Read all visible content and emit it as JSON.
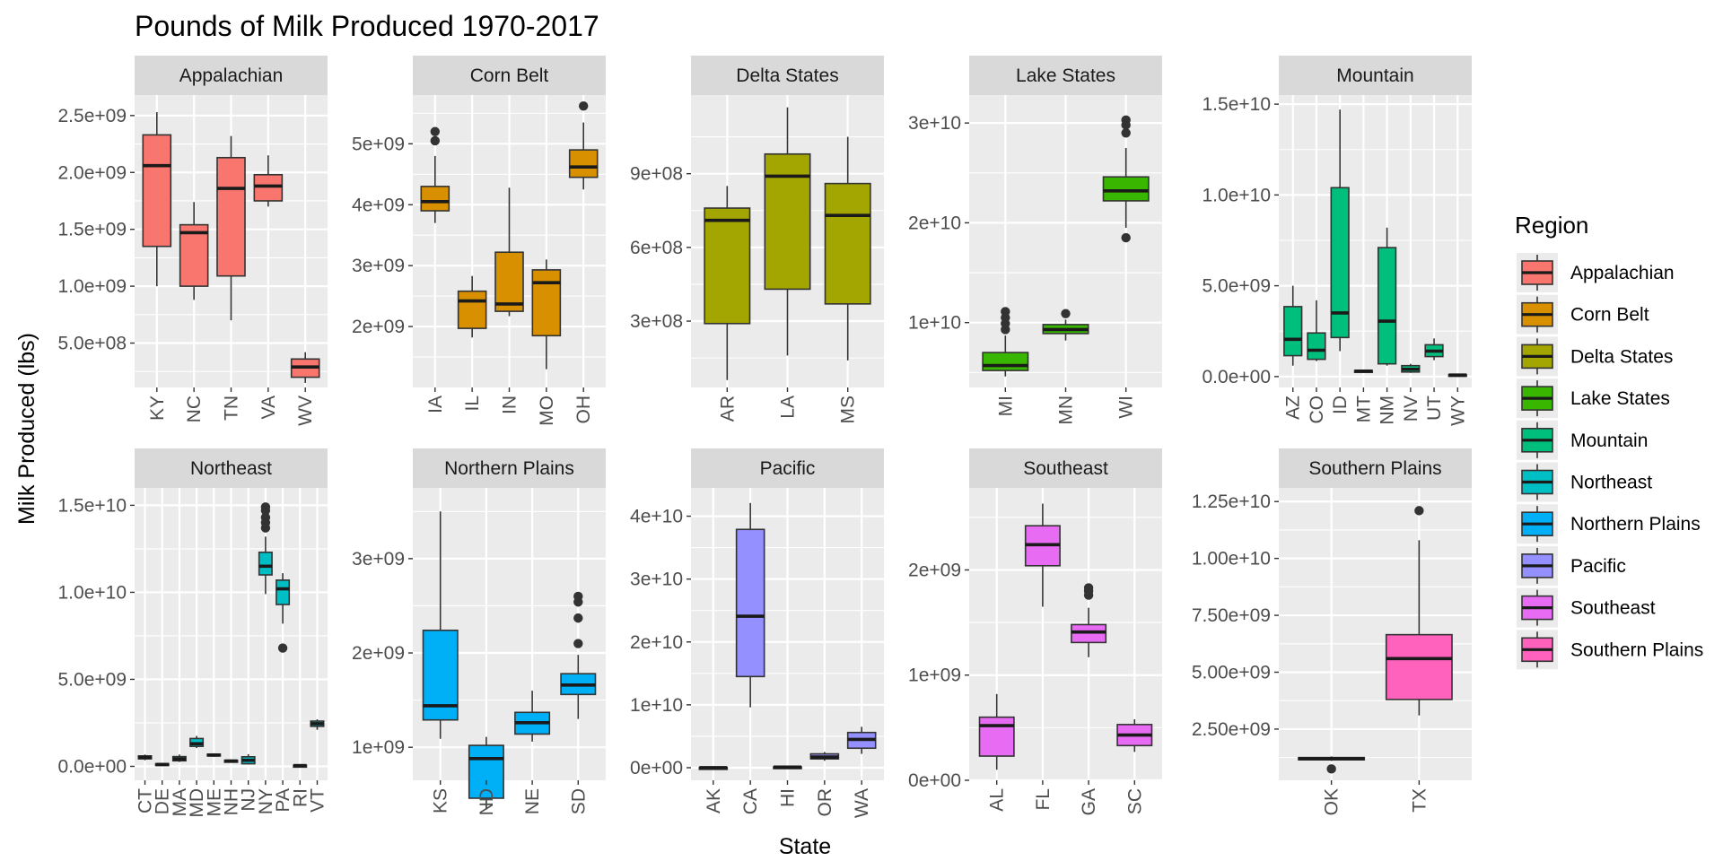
{
  "chart_data": {
    "type": "boxplot",
    "title": "Pounds of Milk Produced 1970-2017",
    "xlabel": "State",
    "ylabel": "Milk Produced (lbs)",
    "legend": {
      "title": "Region",
      "position": "right"
    },
    "colors": {
      "Appalachian": "#F8766D",
      "Corn Belt": "#D89000",
      "Delta States": "#A3A500",
      "Lake States": "#39B600",
      "Mountain": "#00BF7D",
      "Northeast": "#00BFC4",
      "Northern Plains": "#00B0F6",
      "Pacific": "#9590FF",
      "Southeast": "#E76BF3",
      "Southern Plains": "#FF62BC"
    },
    "panels": [
      {
        "region": "Appalachian",
        "ylim": [
          110000000,
          2680000000
        ],
        "yticks": [
          500000000,
          1000000000,
          1500000000,
          2000000000,
          2500000000
        ],
        "ytick_labels": [
          "5.0e+08",
          "1.0e+09",
          "1.5e+09",
          "2.0e+09",
          "2.5e+09"
        ],
        "boxes": [
          {
            "state": "KY",
            "min": 1000000000,
            "q1": 1350000000,
            "median": 2060000000,
            "q3": 2330000000,
            "max": 2530000000,
            "outliers": []
          },
          {
            "state": "NC",
            "min": 880000000,
            "q1": 1000000000,
            "median": 1470000000,
            "q3": 1540000000,
            "max": 1740000000,
            "outliers": []
          },
          {
            "state": "TN",
            "min": 700000000,
            "q1": 1090000000,
            "median": 1860000000,
            "q3": 2130000000,
            "max": 2320000000,
            "outliers": []
          },
          {
            "state": "VA",
            "min": 1700000000,
            "q1": 1750000000,
            "median": 1880000000,
            "q3": 1980000000,
            "max": 2150000000,
            "outliers": []
          },
          {
            "state": "WV",
            "min": 150000000,
            "q1": 200000000,
            "median": 290000000,
            "q3": 360000000,
            "max": 420000000,
            "outliers": []
          }
        ]
      },
      {
        "region": "Corn Belt",
        "ylim": [
          1000000000,
          5800000000
        ],
        "yticks": [
          2000000000,
          3000000000,
          4000000000,
          5000000000
        ],
        "ytick_labels": [
          "2e+09",
          "3e+09",
          "4e+09",
          "5e+09"
        ],
        "boxes": [
          {
            "state": "IA",
            "min": 3700000000,
            "q1": 3900000000,
            "median": 4050000000,
            "q3": 4300000000,
            "max": 4800000000,
            "outliers": [
              5050000000,
              5200000000
            ]
          },
          {
            "state": "IL",
            "min": 1820000000,
            "q1": 1970000000,
            "median": 2420000000,
            "q3": 2580000000,
            "max": 2830000000,
            "outliers": []
          },
          {
            "state": "IN",
            "min": 2170000000,
            "q1": 2250000000,
            "median": 2370000000,
            "q3": 3220000000,
            "max": 4280000000,
            "outliers": []
          },
          {
            "state": "MO",
            "min": 1300000000,
            "q1": 1850000000,
            "median": 2720000000,
            "q3": 2930000000,
            "max": 3100000000,
            "outliers": []
          },
          {
            "state": "OH",
            "min": 4250000000,
            "q1": 4450000000,
            "median": 4620000000,
            "q3": 4900000000,
            "max": 5350000000,
            "outliers": [
              5620000000
            ]
          }
        ]
      },
      {
        "region": "Delta States",
        "ylim": [
          30000000,
          1220000000
        ],
        "yticks": [
          300000000,
          600000000,
          900000000
        ],
        "ytick_labels": [
          "3e+08",
          "6e+08",
          "9e+08"
        ],
        "boxes": [
          {
            "state": "AR",
            "min": 60000000,
            "q1": 290000000,
            "median": 710000000,
            "q3": 760000000,
            "max": 850000000,
            "outliers": []
          },
          {
            "state": "LA",
            "min": 160000000,
            "q1": 430000000,
            "median": 890000000,
            "q3": 980000000,
            "max": 1170000000,
            "outliers": []
          },
          {
            "state": "MS",
            "min": 140000000,
            "q1": 370000000,
            "median": 730000000,
            "q3": 860000000,
            "max": 1050000000,
            "outliers": []
          }
        ]
      },
      {
        "region": "Lake States",
        "ylim": [
          3500000000,
          32800000000
        ],
        "yticks": [
          10000000000,
          20000000000,
          30000000000
        ],
        "ytick_labels": [
          "1e+10",
          "2e+10",
          "3e+10"
        ],
        "boxes": [
          {
            "state": "MI",
            "min": 4600000000,
            "q1": 5200000000,
            "median": 5700000000,
            "q3": 7000000000,
            "max": 8700000000,
            "outliers": [
              9300000000,
              9900000000,
              10500000000,
              11100000000
            ]
          },
          {
            "state": "MN",
            "min": 8200000000,
            "q1": 8900000000,
            "median": 9300000000,
            "q3": 9800000000,
            "max": 10300000000,
            "outliers": [
              10900000000
            ]
          },
          {
            "state": "WI",
            "min": 19500000000,
            "q1": 22200000000,
            "median": 23200000000,
            "q3": 24600000000,
            "max": 27500000000,
            "outliers": [
              18500000000,
              29000000000,
              29800000000,
              30300000000
            ]
          }
        ]
      },
      {
        "region": "Mountain",
        "ylim": [
          -600000000,
          15500000000
        ],
        "yticks": [
          0,
          5000000000,
          10000000000,
          15000000000
        ],
        "ytick_labels": [
          "0.0e+00",
          "5.0e+09",
          "1.0e+10",
          "1.5e+10"
        ],
        "boxes": [
          {
            "state": "AZ",
            "min": 600000000,
            "q1": 1150000000,
            "median": 2050000000,
            "q3": 3850000000,
            "max": 5000000000,
            "outliers": []
          },
          {
            "state": "CO",
            "min": 850000000,
            "q1": 950000000,
            "median": 1450000000,
            "q3": 2400000000,
            "max": 4200000000,
            "outliers": []
          },
          {
            "state": "ID",
            "min": 1400000000,
            "q1": 2150000000,
            "median": 3500000000,
            "q3": 10400000000,
            "max": 14700000000,
            "outliers": []
          },
          {
            "state": "MT",
            "min": 250000000,
            "q1": 270000000,
            "median": 300000000,
            "q3": 330000000,
            "max": 360000000,
            "outliers": []
          },
          {
            "state": "NM",
            "min": 600000000,
            "q1": 700000000,
            "median": 3050000000,
            "q3": 7100000000,
            "max": 8200000000,
            "outliers": []
          },
          {
            "state": "NV",
            "min": 200000000,
            "q1": 250000000,
            "median": 400000000,
            "q3": 600000000,
            "max": 700000000,
            "outliers": []
          },
          {
            "state": "UT",
            "min": 900000000,
            "q1": 1100000000,
            "median": 1400000000,
            "q3": 1750000000,
            "max": 2100000000,
            "outliers": []
          },
          {
            "state": "WY",
            "min": 50000000,
            "q1": 60000000,
            "median": 80000000,
            "q3": 110000000,
            "max": 140000000,
            "outliers": []
          }
        ]
      },
      {
        "region": "Northeast",
        "ylim": [
          -800000000,
          16000000000
        ],
        "yticks": [
          0,
          5000000000,
          10000000000,
          15000000000
        ],
        "ytick_labels": [
          "0.0e+00",
          "5.0e+09",
          "1.0e+10",
          "1.5e+10"
        ],
        "boxes": [
          {
            "state": "CT",
            "min": 350000000,
            "q1": 430000000,
            "median": 520000000,
            "q3": 600000000,
            "max": 680000000,
            "outliers": []
          },
          {
            "state": "DE",
            "min": 60000000,
            "q1": 80000000,
            "median": 110000000,
            "q3": 150000000,
            "max": 180000000,
            "outliers": []
          },
          {
            "state": "MA",
            "min": 250000000,
            "q1": 320000000,
            "median": 420000000,
            "q3": 560000000,
            "max": 680000000,
            "outliers": []
          },
          {
            "state": "MD",
            "min": 1050000000,
            "q1": 1150000000,
            "median": 1300000000,
            "q3": 1600000000,
            "max": 1750000000,
            "outliers": []
          },
          {
            "state": "ME",
            "min": 550000000,
            "q1": 600000000,
            "median": 650000000,
            "q3": 700000000,
            "max": 750000000,
            "outliers": []
          },
          {
            "state": "NH",
            "min": 270000000,
            "q1": 290000000,
            "median": 310000000,
            "q3": 340000000,
            "max": 360000000,
            "outliers": []
          },
          {
            "state": "NJ",
            "min": 100000000,
            "q1": 150000000,
            "median": 350000000,
            "q3": 550000000,
            "max": 700000000,
            "outliers": []
          },
          {
            "state": "NY",
            "min": 9900000000,
            "q1": 11000000000,
            "median": 11500000000,
            "q3": 12300000000,
            "max": 13200000000,
            "outliers": [
              13700000000,
              14000000000,
              14300000000,
              14700000000,
              14900000000
            ]
          },
          {
            "state": "PA",
            "min": 8200000000,
            "q1": 9300000000,
            "median": 10200000000,
            "q3": 10700000000,
            "max": 11100000000,
            "outliers": [
              6800000000
            ]
          },
          {
            "state": "RI",
            "min": 25000000,
            "q1": 35000000,
            "median": 45000000,
            "q3": 60000000,
            "max": 80000000,
            "outliers": []
          },
          {
            "state": "VT",
            "min": 2100000000,
            "q1": 2300000000,
            "median": 2450000000,
            "q3": 2600000000,
            "max": 2700000000,
            "outliers": []
          }
        ]
      },
      {
        "region": "Northern Plains",
        "ylim": [
          650000000,
          3750000000
        ],
        "yticks": [
          1000000000,
          2000000000,
          3000000000
        ],
        "ytick_labels": [
          "1e+09",
          "2e+09",
          "3e+09"
        ],
        "boxes": [
          {
            "state": "KS",
            "min": 1090000000,
            "q1": 1290000000,
            "median": 1440000000,
            "q3": 2240000000,
            "max": 3500000000,
            "outliers": []
          },
          {
            "state": "ND",
            "min": 340000000,
            "q1": 460000000,
            "median": 880000000,
            "q3": 1020000000,
            "max": 1110000000,
            "outliers": []
          },
          {
            "state": "NE",
            "min": 1060000000,
            "q1": 1140000000,
            "median": 1260000000,
            "q3": 1370000000,
            "max": 1600000000,
            "outliers": []
          },
          {
            "state": "SD",
            "min": 1300000000,
            "q1": 1560000000,
            "median": 1660000000,
            "q3": 1780000000,
            "max": 1980000000,
            "outliers": [
              2100000000,
              2370000000,
              2540000000,
              2600000000
            ]
          }
        ]
      },
      {
        "region": "Pacific",
        "ylim": [
          -2000000000,
          44500000000
        ],
        "yticks": [
          0,
          10000000000,
          20000000000,
          30000000000,
          40000000000
        ],
        "ytick_labels": [
          "0e+00",
          "1e+10",
          "2e+10",
          "3e+10",
          "4e+10"
        ],
        "boxes": [
          {
            "state": "AK",
            "min": 5000000,
            "q1": 10000000,
            "median": 15000000,
            "q3": 20000000,
            "max": 30000000,
            "outliers": []
          },
          {
            "state": "CA",
            "min": 9600000000,
            "q1": 14500000000,
            "median": 24100000000,
            "q3": 37900000000,
            "max": 42100000000,
            "outliers": []
          },
          {
            "state": "HI",
            "min": 50000000,
            "q1": 70000000,
            "median": 100000000,
            "q3": 140000000,
            "max": 170000000,
            "outliers": []
          },
          {
            "state": "OR",
            "min": 1100000000,
            "q1": 1400000000,
            "median": 1700000000,
            "q3": 2200000000,
            "max": 2500000000,
            "outliers": []
          },
          {
            "state": "WA",
            "min": 2200000000,
            "q1": 3100000000,
            "median": 4500000000,
            "q3": 5600000000,
            "max": 6500000000,
            "outliers": []
          }
        ]
      },
      {
        "region": "Southeast",
        "ylim": [
          0,
          2780000000
        ],
        "yticks": [
          0,
          1000000000,
          2000000000
        ],
        "ytick_labels": [
          "0e+00",
          "1e+09",
          "2e+09"
        ],
        "boxes": [
          {
            "state": "AL",
            "min": 100000000,
            "q1": 230000000,
            "median": 520000000,
            "q3": 600000000,
            "max": 820000000,
            "outliers": []
          },
          {
            "state": "FL",
            "min": 1650000000,
            "q1": 2040000000,
            "median": 2240000000,
            "q3": 2420000000,
            "max": 2630000000,
            "outliers": []
          },
          {
            "state": "GA",
            "min": 1170000000,
            "q1": 1310000000,
            "median": 1410000000,
            "q3": 1480000000,
            "max": 1640000000,
            "outliers": [
              1760000000,
              1800000000,
              1830000000
            ]
          },
          {
            "state": "SC",
            "min": 270000000,
            "q1": 330000000,
            "median": 430000000,
            "q3": 530000000,
            "max": 580000000,
            "outliers": []
          }
        ]
      },
      {
        "region": "Southern Plains",
        "ylim": [
          250000000,
          13100000000
        ],
        "yticks": [
          2500000000,
          5000000000,
          7500000000,
          10000000000,
          12500000000
        ],
        "ytick_labels": [
          "2.50e+09",
          "5.00e+09",
          "7.50e+09",
          "1.00e+10",
          "1.25e+10"
        ],
        "boxes": [
          {
            "state": "OK",
            "min": 1100000000,
            "q1": 1150000000,
            "median": 1200000000,
            "q3": 1250000000,
            "max": 1300000000,
            "outliers": [
              750000000
            ]
          },
          {
            "state": "TX",
            "min": 3100000000,
            "q1": 3800000000,
            "median": 5600000000,
            "q3": 6650000000,
            "max": 10800000000,
            "outliers": [
              12100000000
            ]
          }
        ]
      }
    ]
  }
}
